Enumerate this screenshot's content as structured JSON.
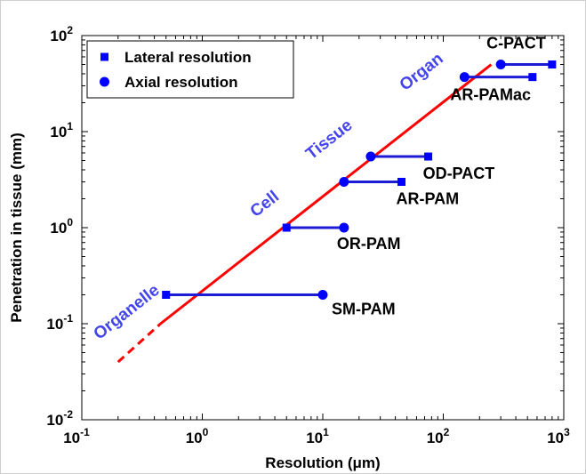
{
  "chart_data": {
    "type": "scatter",
    "xlabel_prefix": "Resolution (",
    "xlabel_mu": "μ",
    "xlabel_suffix": "m)",
    "ylabel": "Penetration in tissue (mm)",
    "x_scale": "log",
    "y_scale": "log",
    "xlim": [
      0.1,
      1000
    ],
    "ylim": [
      0.01,
      100
    ],
    "x_tick_labels": [
      {
        "value": 0.1,
        "base": "10",
        "exp": "-1"
      },
      {
        "value": 1,
        "base": "10",
        "exp": "0"
      },
      {
        "value": 10,
        "base": "10",
        "exp": "1"
      },
      {
        "value": 100,
        "base": "10",
        "exp": "2"
      },
      {
        "value": 1000,
        "base": "10",
        "exp": "3"
      }
    ],
    "y_tick_labels": [
      {
        "value": 0.01,
        "base": "10",
        "exp": "-2"
      },
      {
        "value": 0.1,
        "base": "10",
        "exp": "-1"
      },
      {
        "value": 1,
        "base": "10",
        "exp": "0"
      },
      {
        "value": 10,
        "base": "10",
        "exp": "1"
      },
      {
        "value": 100,
        "base": "10",
        "exp": "2"
      }
    ],
    "grid": false,
    "legend_position": "top-left",
    "legend": [
      {
        "label": "Lateral resolution",
        "marker": "square"
      },
      {
        "label": "Axial resolution",
        "marker": "circle"
      }
    ],
    "colors": {
      "markers": "#0000ff",
      "segments": "#1c1cd6",
      "trend": "#ff0000",
      "scale_labels": "#4444ee",
      "text": "#000000"
    },
    "modalities": [
      {
        "name": "SM-PAM",
        "lateral": 0.5,
        "axial": 10,
        "depth": 0.2
      },
      {
        "name": "OR-PAM",
        "lateral": 5,
        "axial": 15,
        "depth": 1
      },
      {
        "name": "AR-PAM",
        "lateral": 45,
        "axial": 15,
        "depth": 3
      },
      {
        "name": "OD-PACT",
        "lateral": 75,
        "axial": 25,
        "depth": 5.5
      },
      {
        "name": "AR-PAMac",
        "lateral": 550,
        "axial": 150,
        "depth": 37
      },
      {
        "name": "C-PACT",
        "lateral": 800,
        "axial": 300,
        "depth": 50
      }
    ],
    "trend_line": {
      "solid": [
        [
          0.45,
          0.1
        ],
        [
          250,
          50
        ]
      ],
      "dashed": [
        [
          0.2,
          0.04
        ],
        [
          0.45,
          0.1
        ]
      ]
    },
    "scale_annotations": [
      {
        "text": "Organelle",
        "x": 0.25,
        "y": 0.12
      },
      {
        "text": "Cell",
        "x": 3.5,
        "y": 1.6
      },
      {
        "text": "Tissue",
        "x": 12,
        "y": 7.5
      },
      {
        "text": "Organ",
        "x": 70,
        "y": 38
      }
    ]
  }
}
